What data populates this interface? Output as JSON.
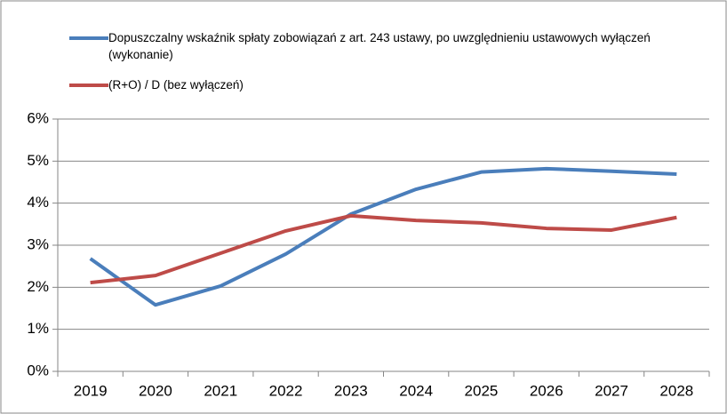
{
  "chart_data": {
    "type": "line",
    "categories": [
      "2019",
      "2020",
      "2021",
      "2022",
      "2023",
      "2024",
      "2025",
      "2026",
      "2027",
      "2028"
    ],
    "series": [
      {
        "name": "Dopuszczalny wskaźnik spłaty zobowiązań z art. 243 ustawy, po uwzględnieniu ustawowych wyłączeń (wykonanie)",
        "color": "#4a7ebb",
        "values": [
          2.68,
          1.58,
          2.03,
          2.79,
          3.74,
          4.33,
          4.74,
          4.82,
          4.76,
          4.69
        ]
      },
      {
        "name": "(R+O) / D (bez wyłączeń)",
        "color": "#be4b48",
        "values": [
          2.11,
          2.28,
          2.81,
          3.34,
          3.7,
          3.59,
          3.53,
          3.4,
          3.36,
          3.66
        ]
      }
    ],
    "ylim": [
      0,
      6
    ],
    "yticks": [
      {
        "value": 0,
        "label": "0%"
      },
      {
        "value": 1,
        "label": "1%"
      },
      {
        "value": 2,
        "label": "2%"
      },
      {
        "value": 3,
        "label": "3%"
      },
      {
        "value": 4,
        "label": "4%"
      },
      {
        "value": 5,
        "label": "5%"
      },
      {
        "value": 6,
        "label": "6%"
      }
    ],
    "grid": true,
    "legend": "top-left"
  }
}
